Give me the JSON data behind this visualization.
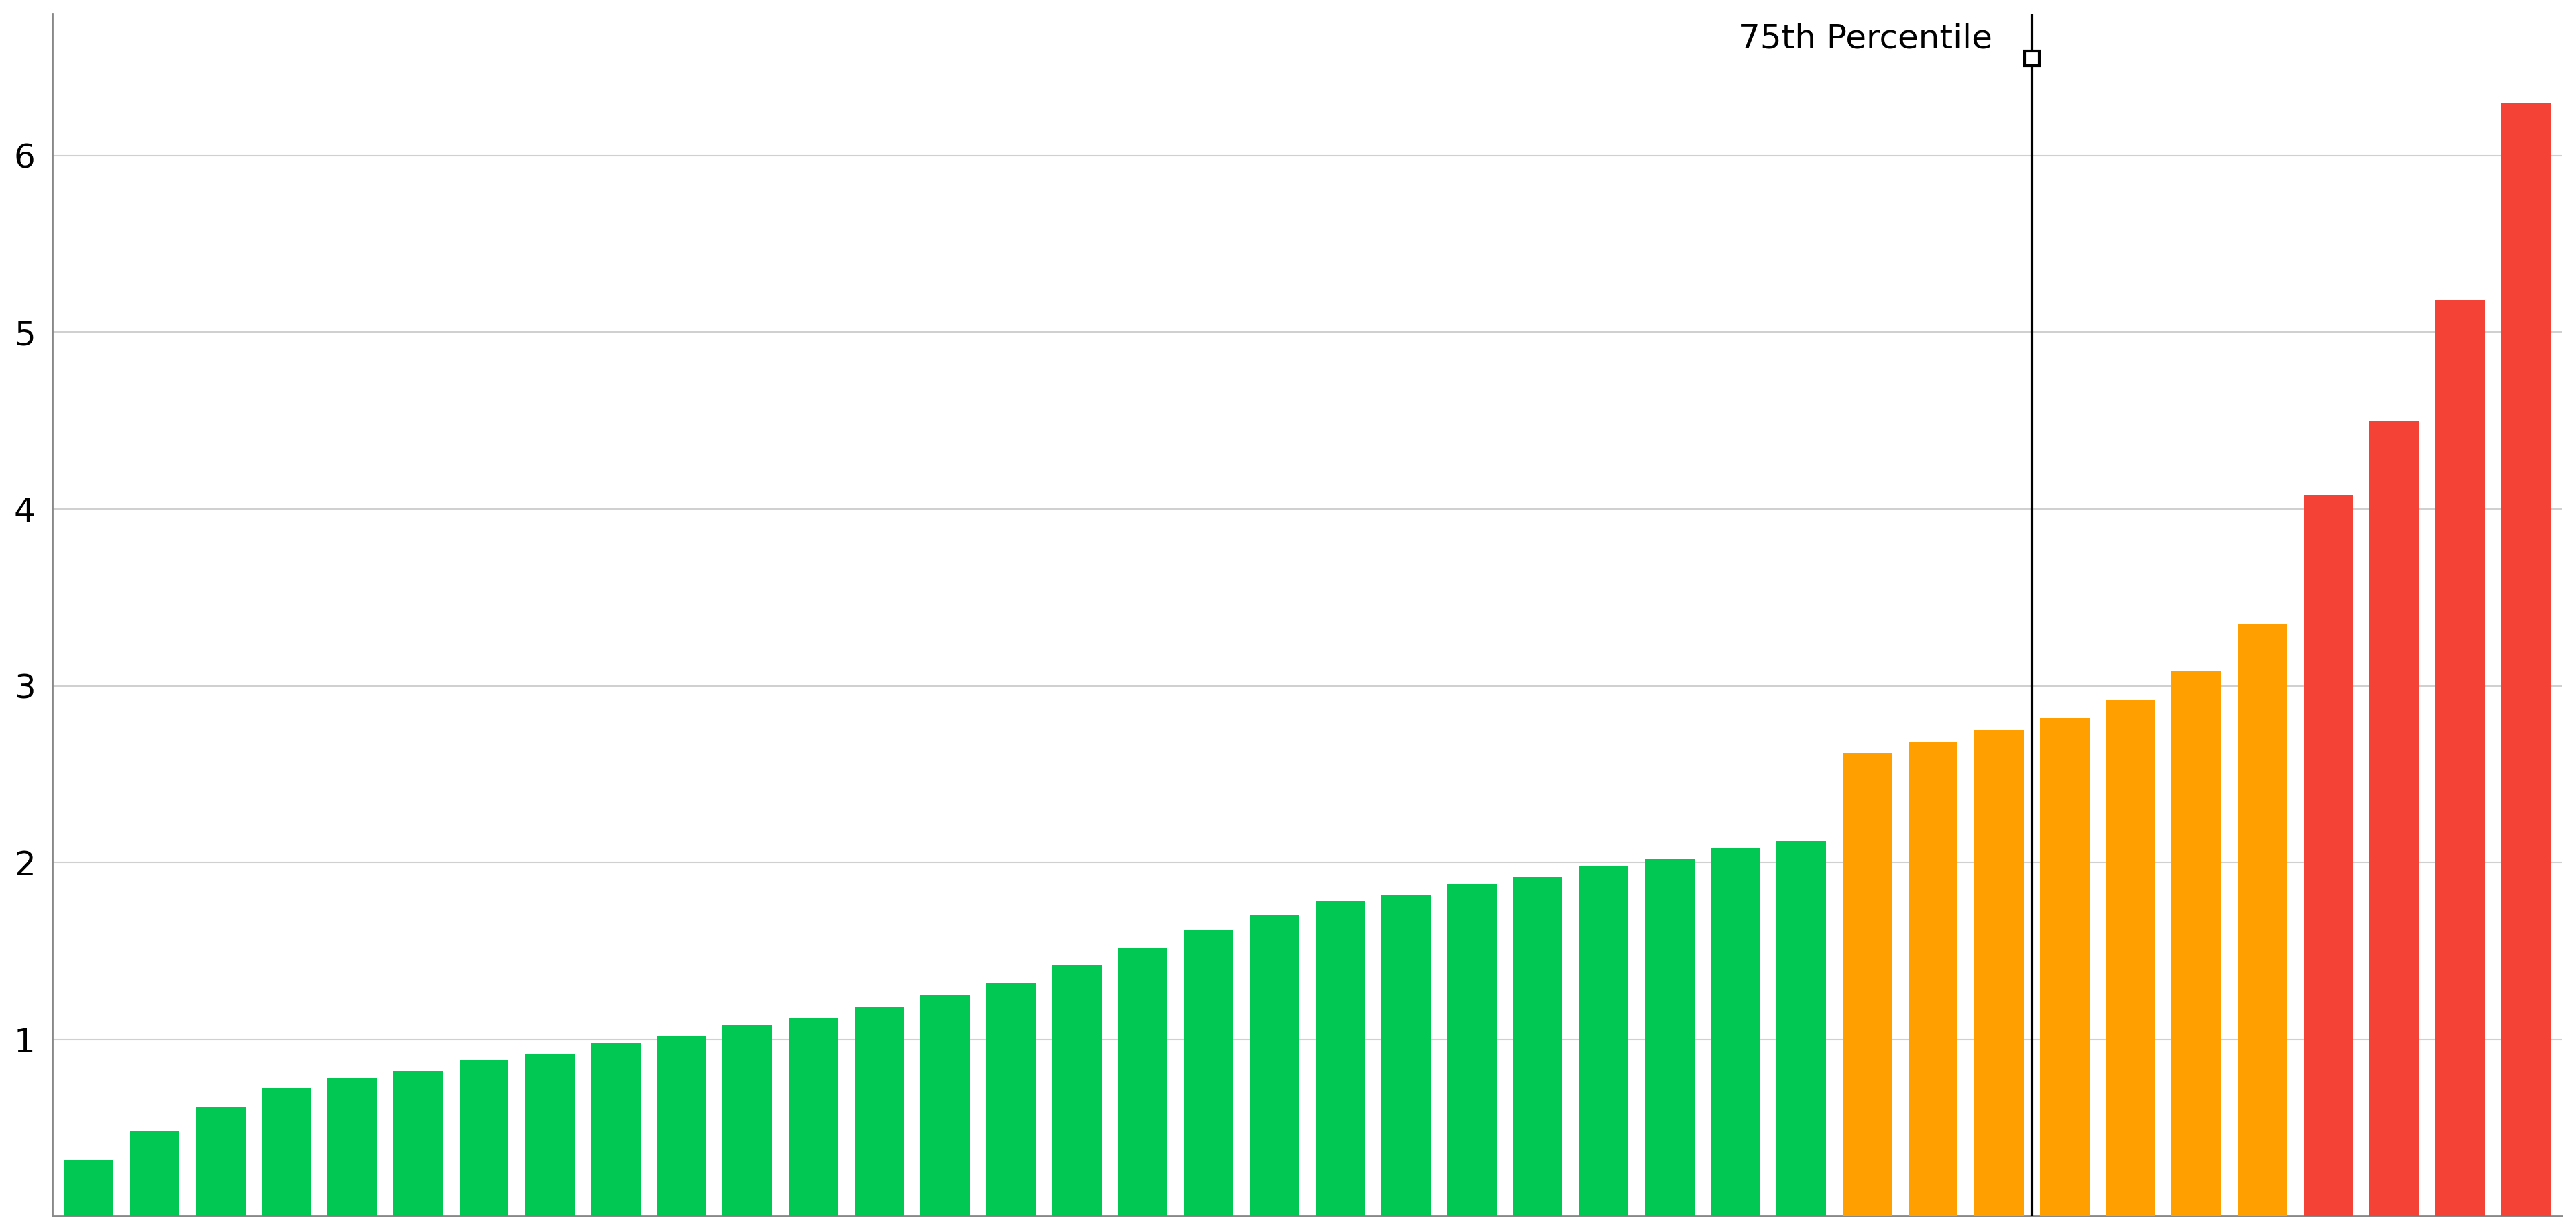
{
  "values": [
    0.32,
    0.48,
    0.62,
    0.72,
    0.78,
    0.82,
    0.88,
    0.92,
    0.98,
    1.02,
    1.08,
    1.12,
    1.18,
    1.25,
    1.32,
    1.42,
    1.52,
    1.62,
    1.7,
    1.78,
    1.82,
    1.88,
    1.92,
    1.98,
    2.02,
    2.08,
    2.12,
    2.62,
    2.68,
    2.75,
    2.82,
    2.92,
    3.08,
    3.35,
    4.08,
    4.5,
    5.18,
    6.3
  ],
  "green_threshold": 2.5,
  "orange_threshold": 4.0,
  "green_color": "#00C853",
  "orange_color": "#FFA000",
  "red_color": "#F44336",
  "percentile_75_bar_index": 29,
  "percentile_label": "75th Percentile",
  "percentile_line_color": "#000000",
  "background_color": "#ffffff",
  "grid_color": "#d0d0d0",
  "ylim": [
    0,
    6.8
  ],
  "yticks": [
    1,
    2,
    3,
    4,
    5,
    6
  ],
  "bar_width": 0.75,
  "figure_width": 38.4,
  "figure_height": 18.34,
  "annotation_fontsize": 36,
  "tick_fontsize": 36
}
